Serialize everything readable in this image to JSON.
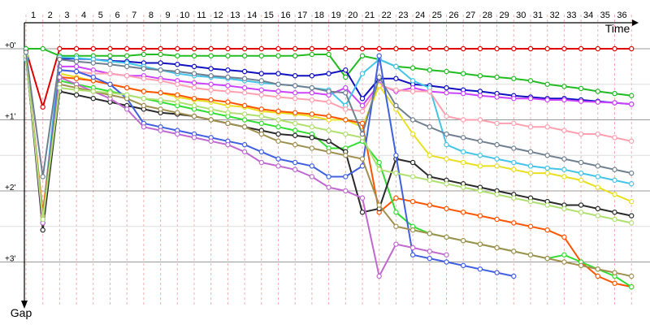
{
  "chart_data": {
    "type": "line",
    "x_axis_title": "Time",
    "y_axis_title": "Gap",
    "x_ticks": [
      "1",
      "2",
      "3",
      "4",
      "5",
      "6",
      "7",
      "8",
      "9",
      "10",
      "11",
      "12",
      "13",
      "14",
      "15",
      "16",
      "17",
      "18",
      "19",
      "20",
      "21",
      "22",
      "23",
      "24",
      "25",
      "26",
      "27",
      "28",
      "29",
      "30",
      "31",
      "32",
      "33",
      "34",
      "35",
      "36"
    ],
    "y_ticks": [
      {
        "value": 0,
        "label": "+0'"
      },
      {
        "value": 1,
        "label": "+1'"
      },
      {
        "value": 2,
        "label": "+2'"
      },
      {
        "value": 3,
        "label": "+3'"
      }
    ],
    "ylim": [
      0,
      3.5
    ],
    "grid": true,
    "series": [
      {
        "color": "#e00000",
        "values": [
          0.02,
          0.82,
          0.0,
          0.0,
          0.0,
          0.0,
          0.0,
          0.0,
          0.0,
          0.0,
          0.0,
          0.0,
          0.0,
          0.0,
          0.0,
          0.0,
          0.0,
          0.0,
          0.0,
          0.0,
          0.0,
          0.0,
          0.0,
          0.0,
          0.0,
          0.0,
          0.0,
          0.0,
          0.0,
          0.0,
          0.0,
          0.0,
          0.0,
          0.0,
          0.0,
          0.0,
          0.0
        ]
      },
      {
        "color": "#22bb22",
        "values": [
          0.0,
          0.0,
          0.1,
          0.1,
          0.1,
          0.1,
          0.1,
          0.08,
          0.08,
          0.1,
          0.1,
          0.1,
          0.1,
          0.1,
          0.1,
          0.1,
          0.1,
          0.08,
          0.08,
          0.4,
          0.1,
          0.15,
          0.25,
          0.27,
          0.3,
          0.32,
          0.35,
          0.38,
          0.4,
          0.42,
          0.45,
          0.5,
          0.53,
          0.56,
          0.6,
          0.63,
          0.66
        ]
      },
      {
        "color": "#1010c0",
        "values": [
          0.1,
          2.45,
          0.14,
          0.14,
          0.15,
          0.17,
          0.18,
          0.2,
          0.2,
          0.22,
          0.25,
          0.28,
          0.3,
          0.32,
          0.35,
          0.35,
          0.38,
          0.38,
          0.35,
          0.3,
          0.7,
          0.42,
          0.42,
          0.5,
          0.52,
          0.55,
          0.58,
          0.6,
          0.63,
          0.66,
          0.68,
          0.7,
          0.7,
          0.72,
          0.74,
          0.76,
          0.78
        ]
      },
      {
        "color": "#cc44ff",
        "values": [
          0.12,
          2.4,
          0.25,
          0.25,
          0.3,
          0.35,
          0.38,
          0.38,
          0.42,
          0.45,
          0.48,
          0.5,
          0.52,
          0.55,
          0.58,
          0.6,
          0.62,
          0.62,
          0.65,
          0.55,
          0.8,
          0.5,
          0.6,
          0.55,
          0.6,
          0.62,
          0.63,
          0.66,
          0.68,
          0.7,
          0.7,
          0.72,
          0.72,
          0.74,
          0.75,
          0.76,
          0.78
        ]
      },
      {
        "color": "#44c4e8",
        "values": [
          0.15,
          2.35,
          0.12,
          0.13,
          0.15,
          0.18,
          0.2,
          0.25,
          0.3,
          0.35,
          0.38,
          0.4,
          0.42,
          0.45,
          0.48,
          0.5,
          0.52,
          0.55,
          0.58,
          0.8,
          0.35,
          0.15,
          0.25,
          0.45,
          0.55,
          1.35,
          1.45,
          1.5,
          1.55,
          1.6,
          1.65,
          1.68,
          1.7,
          1.75,
          1.8,
          1.85,
          1.9
        ]
      },
      {
        "color": "#ffa0b0",
        "values": [
          0.1,
          2.4,
          0.3,
          0.32,
          0.35,
          0.35,
          0.38,
          0.42,
          0.45,
          0.5,
          0.55,
          0.58,
          0.6,
          0.62,
          0.65,
          0.68,
          0.7,
          0.72,
          0.75,
          0.85,
          0.88,
          0.52,
          0.58,
          0.6,
          0.6,
          0.95,
          1.0,
          1.0,
          1.05,
          1.05,
          1.1,
          1.1,
          1.15,
          1.2,
          1.2,
          1.25,
          1.3
        ]
      },
      {
        "color": "#e8e020",
        "values": [
          0.1,
          2.4,
          0.35,
          0.4,
          0.45,
          0.5,
          0.55,
          0.6,
          0.62,
          0.68,
          0.72,
          0.75,
          0.8,
          0.82,
          0.88,
          0.9,
          0.92,
          0.95,
          1.0,
          1.0,
          1.1,
          0.52,
          0.85,
          1.2,
          1.5,
          1.55,
          1.6,
          1.65,
          1.65,
          1.7,
          1.75,
          1.75,
          1.8,
          1.85,
          1.95,
          2.05,
          2.15
        ]
      },
      {
        "color": "#ff5500",
        "values": [
          0.1,
          2.3,
          0.4,
          0.42,
          0.45,
          0.5,
          0.55,
          0.6,
          0.62,
          0.65,
          0.7,
          0.72,
          0.75,
          0.8,
          0.85,
          0.88,
          0.9,
          0.92,
          0.95,
          1.0,
          1.05,
          2.3,
          2.1,
          2.15,
          2.2,
          2.25,
          2.3,
          2.35,
          2.4,
          2.45,
          2.5,
          2.55,
          2.65,
          3.0,
          3.2,
          3.3,
          3.35
        ]
      },
      {
        "color": "#33dd33",
        "values": [
          0.1,
          2.45,
          0.45,
          0.5,
          0.55,
          0.6,
          0.65,
          0.7,
          0.75,
          0.8,
          0.85,
          0.9,
          0.95,
          1.0,
          1.05,
          1.1,
          1.15,
          1.2,
          1.4,
          1.4,
          1.3,
          1.6,
          2.3,
          2.5,
          2.6,
          2.65,
          2.7,
          2.75,
          2.8,
          2.85,
          2.9,
          2.95,
          2.9,
          3.0,
          3.1,
          3.2,
          3.35
        ]
      },
      {
        "color": "#2a2a2a",
        "values": [
          0.1,
          2.55,
          0.6,
          0.65,
          0.7,
          0.75,
          0.8,
          0.85,
          0.9,
          0.92,
          0.95,
          1.0,
          1.05,
          1.1,
          1.15,
          1.2,
          1.22,
          1.25,
          1.3,
          1.45,
          2.3,
          2.25,
          1.55,
          1.6,
          1.8,
          1.85,
          1.9,
          1.95,
          2.0,
          2.05,
          2.1,
          2.15,
          2.2,
          2.2,
          2.25,
          2.3,
          2.35
        ]
      },
      {
        "color": "#4060e0",
        "values": [
          0.1,
          2.4,
          0.3,
          0.32,
          0.4,
          0.5,
          0.7,
          1.05,
          1.1,
          1.15,
          1.2,
          1.25,
          1.3,
          1.35,
          1.45,
          1.55,
          1.6,
          1.65,
          1.8,
          1.8,
          1.65,
          0.1,
          1.5,
          2.9,
          2.95,
          3.0,
          3.05,
          3.1,
          3.15,
          3.2
        ]
      },
      {
        "color": "#c06ad0",
        "values": [
          0.1,
          2.45,
          0.4,
          0.5,
          0.6,
          0.7,
          0.85,
          1.1,
          1.15,
          1.2,
          1.25,
          1.3,
          1.35,
          1.45,
          1.6,
          1.65,
          1.7,
          1.8,
          1.95,
          2.0,
          2.1,
          3.2,
          2.75,
          2.8,
          2.85,
          2.9
        ]
      },
      {
        "color": "#a09050",
        "values": [
          0.1,
          2.35,
          0.5,
          0.55,
          0.6,
          0.65,
          0.7,
          0.8,
          0.85,
          0.9,
          0.95,
          1.0,
          1.05,
          1.1,
          1.2,
          1.3,
          1.35,
          1.4,
          1.45,
          1.5,
          1.55,
          2.2,
          2.5,
          2.55,
          2.6,
          2.65,
          2.7,
          2.75,
          2.8,
          2.85,
          2.9,
          2.95,
          3.0,
          3.05,
          3.1,
          3.15,
          3.2
        ]
      },
      {
        "color": "#b0e070",
        "values": [
          0.1,
          2.4,
          0.55,
          0.58,
          0.6,
          0.62,
          0.65,
          0.7,
          0.72,
          0.75,
          0.8,
          0.85,
          0.9,
          0.92,
          0.95,
          1.0,
          1.05,
          1.1,
          1.15,
          1.2,
          1.25,
          1.7,
          1.75,
          1.8,
          1.85,
          1.9,
          1.95,
          2.0,
          2.05,
          2.1,
          2.15,
          2.2,
          2.25,
          2.3,
          2.35,
          2.4,
          2.45
        ]
      },
      {
        "color": "#708090",
        "values": [
          0.05,
          1.8,
          0.15,
          0.18,
          0.2,
          0.22,
          0.25,
          0.28,
          0.3,
          0.32,
          0.35,
          0.38,
          0.4,
          0.42,
          0.45,
          0.5,
          0.52,
          0.55,
          0.6,
          0.62,
          1.2,
          0.4,
          0.8,
          1.0,
          1.1,
          1.2,
          1.25,
          1.3,
          1.35,
          1.4,
          1.45,
          1.5,
          1.55,
          1.6,
          1.65,
          1.7,
          1.75
        ]
      }
    ]
  }
}
